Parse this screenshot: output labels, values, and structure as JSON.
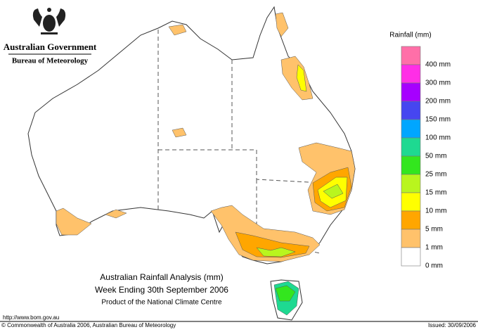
{
  "header": {
    "agency": "Australian Government",
    "bureau": "Bureau of Meteorology"
  },
  "legend": {
    "title": "Rainfall (mm)",
    "items": [
      {
        "label": "400 mm",
        "color": "#ff6fa8"
      },
      {
        "label": "300 mm",
        "color": "#ff2ee6"
      },
      {
        "label": "200 mm",
        "color": "#a600ff"
      },
      {
        "label": "150 mm",
        "color": "#4646f0"
      },
      {
        "label": "100 mm",
        "color": "#00a6ff"
      },
      {
        "label": "50 mm",
        "color": "#1ed991"
      },
      {
        "label": "25 mm",
        "color": "#33e61e"
      },
      {
        "label": "15 mm",
        "color": "#b9f51e"
      },
      {
        "label": "10 mm",
        "color": "#ffff00"
      },
      {
        "label": "5 mm",
        "color": "#ffa600"
      },
      {
        "label": "1 mm",
        "color": "#ffc26b"
      },
      {
        "label": "0 mm",
        "color": "#ffffff"
      }
    ]
  },
  "map": {
    "title": "Australian Rainfall Analysis (mm)",
    "period": "Week Ending 30th September 2006",
    "product": "Product of the National Climate Centre"
  },
  "footer": {
    "url": "http://www.bom.gov.au",
    "copyright": "© Commonwealth of Australia 2006, Australian Bureau of Meteorology",
    "issued": "Issued: 30/09/2006"
  }
}
